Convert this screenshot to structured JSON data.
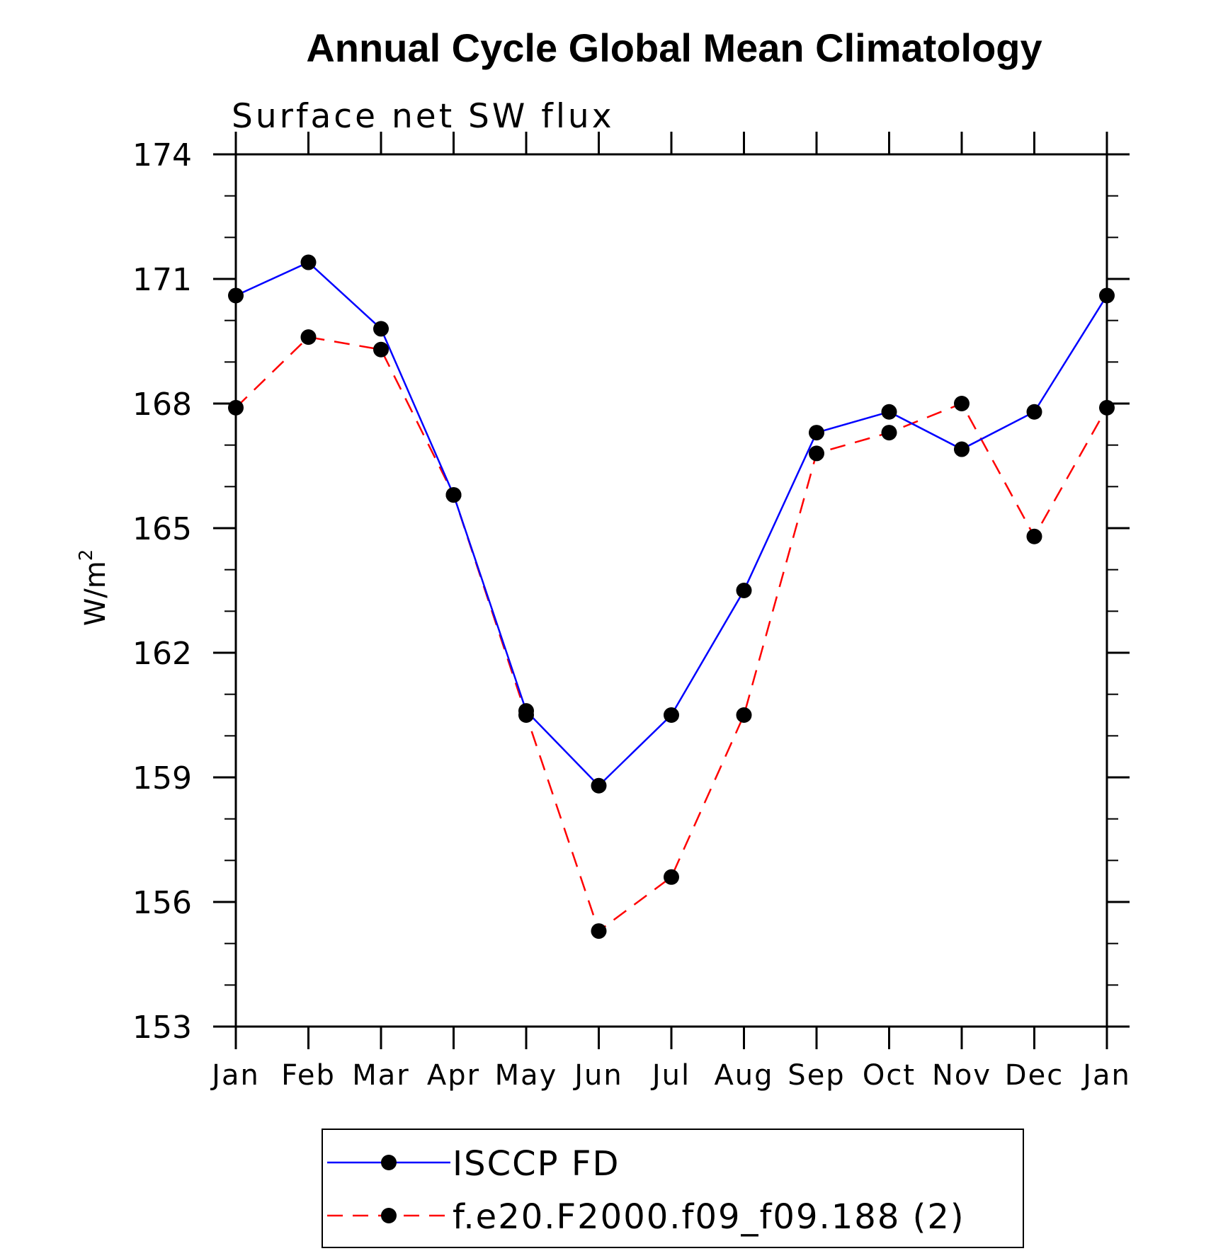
{
  "chart_data": {
    "type": "line",
    "title": "Annual Cycle Global Mean Climatology",
    "subtitle": "Surface net SW flux",
    "ylabel": "W/m",
    "ylabel_superscript": "2",
    "ylim": [
      153,
      174
    ],
    "yticks": [
      153,
      156,
      159,
      162,
      165,
      168,
      171,
      174
    ],
    "categories": [
      "Jan",
      "Feb",
      "Mar",
      "Apr",
      "May",
      "Jun",
      "Jul",
      "Aug",
      "Sep",
      "Oct",
      "Nov",
      "Dec",
      "Jan"
    ],
    "series": [
      {
        "name": "ISCCP FD",
        "color": "#0000ff",
        "dash": "solid",
        "marker": "filled-circle",
        "values": [
          170.6,
          171.4,
          169.8,
          165.8,
          160.6,
          158.8,
          160.5,
          163.5,
          167.3,
          167.8,
          166.9,
          167.8,
          170.6
        ]
      },
      {
        "name": "f.e20.F2000.f09_f09.188 (2)",
        "color": "#ff0000",
        "dash": "dashed",
        "marker": "filled-circle",
        "values": [
          167.9,
          169.6,
          169.3,
          165.8,
          160.5,
          155.3,
          156.6,
          160.5,
          166.8,
          167.3,
          168.0,
          164.8,
          167.9
        ]
      }
    ],
    "grid": false,
    "legend_position": "bottom-center"
  }
}
